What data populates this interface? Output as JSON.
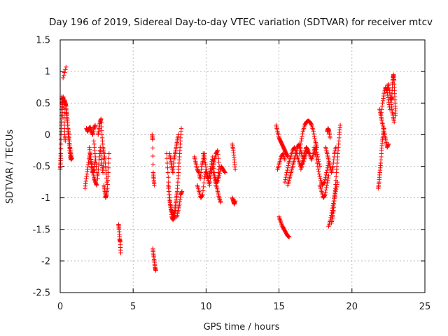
{
  "chart_data": {
    "type": "scatter",
    "title": "Day 196 of 2019, Sidereal Day-to-day VTEC variation (SDTVAR) for receiver mtcv",
    "xlabel": "GPS time / hours",
    "ylabel": "SDTVAR / TECUs",
    "xlim": [
      0,
      25
    ],
    "ylim": [
      -2.5,
      1.5
    ],
    "xticks": [
      "0",
      "5",
      "10",
      "15",
      "20",
      "25"
    ],
    "yticks": [
      "-2.5",
      "-2",
      "-1.5",
      "-1",
      "-0.5",
      "0",
      "0.5",
      "1",
      "1.5"
    ],
    "grid": true,
    "marker": "+",
    "color": "#ff0000",
    "series": [
      {
        "name": "SDTVAR",
        "segments": [
          {
            "t0": 0.0,
            "t1": 0.15,
            "v": [
              -0.55,
              -0.45,
              -0.3,
              0.0,
              0.2,
              0.6,
              0.5,
              0.3
            ]
          },
          {
            "t0": 0.1,
            "t1": 0.35,
            "v": [
              0.2,
              0.4,
              0.55,
              0.6,
              0.5,
              0.2,
              0.0,
              -0.1
            ]
          },
          {
            "t0": 0.2,
            "t1": 0.4,
            "v": [
              0.9,
              1.07
            ]
          },
          {
            "t0": 0.3,
            "t1": 0.75,
            "v": [
              0.55,
              0.5,
              0.45,
              0.3,
              0.2,
              0.0,
              -0.1,
              -0.25,
              -0.35,
              -0.4
            ]
          },
          {
            "t0": 0.4,
            "t1": 0.8,
            "v": [
              0.4,
              0.3,
              0.1,
              0.0,
              -0.2,
              -0.3,
              -0.38
            ]
          },
          {
            "t0": 1.7,
            "t1": 2.4,
            "v": [
              -0.85,
              -0.7,
              -0.55,
              -0.4,
              -0.3,
              -0.5,
              -0.6,
              -0.55,
              -0.4
            ]
          },
          {
            "t0": 1.8,
            "t1": 2.4,
            "v": [
              0.1,
              0.05,
              0.1,
              0.12,
              0.05,
              0.0,
              0.1,
              0.15
            ]
          },
          {
            "t0": 2.0,
            "t1": 2.5,
            "v": [
              -0.2,
              -0.35,
              -0.5,
              -0.6,
              -0.7,
              -0.75,
              -0.8
            ]
          },
          {
            "t0": 2.3,
            "t1": 3.2,
            "v": [
              -0.1,
              -0.3,
              -0.5,
              -0.7,
              -0.4,
              -0.2,
              -0.45,
              -0.6,
              -0.3,
              -0.5,
              -0.75
            ]
          },
          {
            "t0": 2.6,
            "t1": 3.0,
            "v": [
              0.0,
              0.1,
              0.2,
              0.25,
              0.0,
              -0.2,
              -0.3
            ]
          },
          {
            "t0": 3.0,
            "t1": 3.35,
            "v": [
              -0.8,
              -0.9,
              -1.0,
              -0.95,
              -0.85,
              -0.6,
              -0.3
            ]
          },
          {
            "t0": 4.0,
            "t1": 4.15,
            "v": [
              -1.42,
              -1.5,
              -1.65,
              -1.7,
              -1.87
            ]
          },
          {
            "t0": 6.3,
            "t1": 6.45,
            "v": [
              0.0,
              -0.08,
              -0.6,
              -0.7,
              -0.8
            ]
          },
          {
            "t0": 6.35,
            "t1": 6.55,
            "v": [
              -1.8,
              -1.9,
              -2.0,
              -2.1,
              -2.15
            ]
          },
          {
            "t0": 7.3,
            "t1": 7.8,
            "v": [
              -0.3,
              -0.6,
              -0.9,
              -1.1,
              -1.2,
              -1.25,
              -1.3
            ]
          },
          {
            "t0": 7.4,
            "t1": 7.9,
            "v": [
              -0.8,
              -1.0,
              -1.15,
              -1.3,
              -1.35,
              -1.3,
              -1.2
            ]
          },
          {
            "t0": 7.5,
            "t1": 8.1,
            "v": [
              -0.3,
              -0.4,
              -0.5,
              -0.6,
              -0.4,
              -0.3,
              -0.2,
              -0.1,
              0.0
            ]
          },
          {
            "t0": 7.8,
            "t1": 8.3,
            "v": [
              -1.3,
              -1.2,
              -1.1,
              -1.0,
              -0.9,
              -0.7,
              -0.5,
              -0.3,
              -0.1,
              0.1
            ]
          },
          {
            "t0": 8.0,
            "t1": 8.35,
            "v": [
              -1.3,
              -1.2,
              -1.1,
              -0.95,
              -0.9
            ]
          },
          {
            "t0": 9.2,
            "t1": 9.9,
            "v": [
              -0.35,
              -0.45,
              -0.55,
              -0.6,
              -0.7,
              -0.5,
              -0.4,
              -0.3
            ]
          },
          {
            "t0": 9.4,
            "t1": 10.0,
            "v": [
              -0.8,
              -0.9,
              -1.0,
              -0.95,
              -0.7,
              -0.55
            ]
          },
          {
            "t0": 9.8,
            "t1": 10.9,
            "v": [
              -0.3,
              -0.4,
              -0.55,
              -0.7,
              -0.8,
              -0.6,
              -0.5,
              -0.4,
              -0.3,
              -0.25,
              -0.5
            ]
          },
          {
            "t0": 10.0,
            "t1": 10.9,
            "v": [
              -0.6,
              -0.7,
              -0.65,
              -0.5,
              -0.35,
              -0.6,
              -0.8,
              -0.7,
              -0.5
            ]
          },
          {
            "t0": 10.5,
            "t1": 11.3,
            "v": [
              -0.6,
              -0.7,
              -0.75,
              -0.65,
              -0.5,
              -0.55,
              -0.6
            ]
          },
          {
            "t0": 10.6,
            "t1": 11.0,
            "v": [
              -0.7,
              -0.8,
              -0.9,
              -1.0,
              -1.07
            ]
          },
          {
            "t0": 11.8,
            "t1": 12.0,
            "v": [
              -0.15,
              -0.25,
              -0.4,
              -0.55
            ]
          },
          {
            "t0": 11.8,
            "t1": 12.0,
            "v": [
              -1.0,
              -1.05,
              -1.1,
              -1.05
            ]
          },
          {
            "t0": 14.8,
            "t1": 15.6,
            "v": [
              0.15,
              0.05,
              -0.05,
              -0.1,
              -0.15,
              -0.2,
              -0.25,
              -0.3,
              -0.35
            ]
          },
          {
            "t0": 15.0,
            "t1": 15.7,
            "v": [
              -1.3,
              -1.38,
              -1.45,
              -1.5,
              -1.55,
              -1.6,
              -1.62
            ]
          },
          {
            "t0": 14.9,
            "t1": 15.4,
            "v": [
              -0.55,
              -0.45,
              -0.35,
              -0.3,
              -0.4
            ]
          },
          {
            "t0": 15.4,
            "t1": 17.0,
            "v": [
              -0.75,
              -0.6,
              -0.45,
              -0.35,
              -0.25,
              -0.2,
              -0.3,
              -0.4,
              -0.5,
              -0.45,
              -0.3,
              -0.2,
              -0.25
            ]
          },
          {
            "t0": 15.6,
            "t1": 16.6,
            "v": [
              -0.8,
              -0.7,
              -0.6,
              -0.5,
              -0.4,
              -0.3,
              -0.2,
              -0.15,
              -0.25,
              -0.35
            ]
          },
          {
            "t0": 16.4,
            "t1": 17.6,
            "v": [
              -0.3,
              -0.1,
              0.05,
              0.15,
              0.2,
              0.22,
              0.2,
              0.15,
              0.05,
              -0.1,
              -0.2
            ]
          },
          {
            "t0": 16.5,
            "t1": 17.8,
            "v": [
              -0.55,
              -0.45,
              -0.35,
              -0.25,
              -0.3,
              -0.4,
              -0.3,
              -0.2,
              -0.35,
              -0.5
            ]
          },
          {
            "t0": 17.4,
            "t1": 18.4,
            "v": [
              -0.2,
              -0.35,
              -0.55,
              -0.7,
              -0.8,
              -0.75,
              -0.6,
              -0.45
            ]
          },
          {
            "t0": 17.8,
            "t1": 18.4,
            "v": [
              -0.8,
              -0.9,
              -1.0,
              -0.95,
              -0.8,
              -0.65
            ]
          },
          {
            "t0": 18.2,
            "t1": 18.9,
            "v": [
              -0.2,
              -0.3,
              -0.4,
              -0.5,
              -0.6,
              -0.5,
              -0.3,
              -0.2
            ]
          },
          {
            "t0": 18.3,
            "t1": 18.5,
            "v": [
              0.05,
              0.1,
              0.05,
              -0.05
            ]
          },
          {
            "t0": 18.4,
            "t1": 19.0,
            "v": [
              -1.45,
              -1.35,
              -1.2,
              -1.05,
              -0.9,
              -0.75
            ]
          },
          {
            "t0": 18.6,
            "t1": 19.2,
            "v": [
              -1.4,
              -1.3,
              -1.2,
              -1.0,
              -0.85,
              -0.6,
              -0.4,
              -0.2,
              0.0,
              0.15
            ]
          },
          {
            "t0": 21.8,
            "t1": 22.2,
            "v": [
              -0.85,
              -0.75,
              -0.6,
              -0.45,
              -0.25,
              -0.1,
              0.0,
              0.1
            ]
          },
          {
            "t0": 21.9,
            "t1": 22.5,
            "v": [
              0.4,
              0.3,
              0.2,
              0.1,
              0.0,
              -0.1,
              -0.2,
              -0.15
            ]
          },
          {
            "t0": 22.0,
            "t1": 22.6,
            "v": [
              0.3,
              0.5,
              0.65,
              0.75,
              0.7,
              0.55,
              0.4
            ]
          },
          {
            "t0": 22.4,
            "t1": 22.9,
            "v": [
              0.7,
              0.8,
              0.7,
              0.55,
              0.4,
              0.3,
              0.2
            ]
          },
          {
            "t0": 22.7,
            "t1": 23.0,
            "v": [
              0.55,
              0.6,
              0.8,
              0.9,
              0.95,
              0.85,
              0.65,
              0.45,
              0.3
            ]
          }
        ]
      }
    ]
  }
}
